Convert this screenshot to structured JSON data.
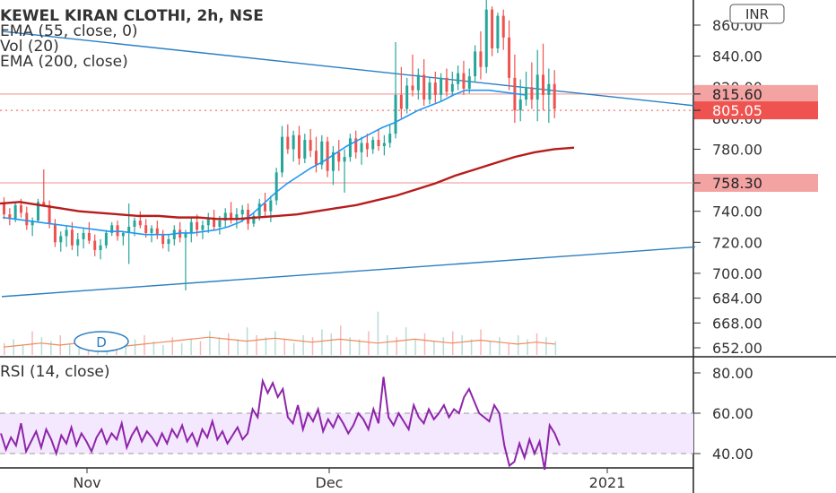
{
  "header": {
    "symbol_title": "KEWEL KIRAN CLOTHI, 2h, NSE",
    "indicators": [
      "EMA (55, close, 0)",
      "Vol (20)",
      "EMA (200, close)"
    ],
    "currency_button": "INR",
    "interval_badge": "D",
    "rsi_label": "RSI (14, close)"
  },
  "colors": {
    "up": "#26a69a",
    "down": "#ef5350",
    "ema55": "#2196f3",
    "ema200": "#b71c1c",
    "trendline": "#2a7fc2",
    "hline": "#f3a6a6",
    "rsi": "#8e24aa",
    "rsi_band": "#f3e8fd"
  },
  "chart_data": [
    {
      "type": "candlestick",
      "title": "KEWEL KIRAN CLOTHI, 2h, NSE",
      "x_labels": [
        "Nov",
        "Dec",
        "2021"
      ],
      "y_ticks": [
        860,
        840,
        820,
        800,
        780,
        760,
        740,
        720,
        700,
        684,
        668,
        652
      ],
      "y_range": [
        646,
        870
      ],
      "price_labels": [
        {
          "value": 815.6,
          "text": "815.60",
          "style": "pink"
        },
        {
          "value": 805.05,
          "text": "805.05",
          "style": "red"
        },
        {
          "value": 758.3,
          "text": "758.30",
          "style": "pink"
        }
      ],
      "horizontal_lines": [
        815.6,
        758.3
      ],
      "trendlines": [
        {
          "from": [
            0,
            856
          ],
          "to": [
            131,
            808
          ]
        },
        {
          "from": [
            0,
            685
          ],
          "to": [
            131,
            717
          ]
        }
      ],
      "candles_ohlc": [
        [
          745,
          749,
          735,
          738
        ],
        [
          738,
          742,
          731,
          735
        ],
        [
          735,
          746,
          733,
          744
        ],
        [
          744,
          748,
          736,
          739
        ],
        [
          739,
          743,
          728,
          731
        ],
        [
          731,
          736,
          724,
          734
        ],
        [
          734,
          748,
          733,
          746
        ],
        [
          746,
          767,
          743,
          744
        ],
        [
          744,
          747,
          729,
          732
        ],
        [
          732,
          735,
          717,
          720
        ],
        [
          720,
          727,
          714,
          724
        ],
        [
          724,
          731,
          717,
          728
        ],
        [
          728,
          733,
          715,
          718
        ],
        [
          718,
          726,
          711,
          722
        ],
        [
          722,
          729,
          716,
          726
        ],
        [
          726,
          733,
          719,
          721
        ],
        [
          721,
          725,
          711,
          715
        ],
        [
          715,
          722,
          709,
          718
        ],
        [
          718,
          728,
          716,
          726
        ],
        [
          726,
          733,
          724,
          731
        ],
        [
          731,
          734,
          721,
          724
        ],
        [
          724,
          727,
          718,
          726
        ],
        [
          726,
          745,
          706,
          730
        ],
        [
          730,
          736,
          724,
          734
        ],
        [
          734,
          740,
          729,
          731
        ],
        [
          731,
          735,
          723,
          726
        ],
        [
          726,
          731,
          720,
          729
        ],
        [
          729,
          734,
          722,
          725
        ],
        [
          725,
          728,
          716,
          719
        ],
        [
          719,
          725,
          714,
          722
        ],
        [
          722,
          731,
          718,
          728
        ],
        [
          728,
          733,
          720,
          723
        ],
        [
          723,
          728,
          689,
          726
        ],
        [
          726,
          736,
          720,
          733
        ],
        [
          733,
          738,
          724,
          728
        ],
        [
          728,
          734,
          722,
          731
        ],
        [
          731,
          739,
          726,
          735
        ],
        [
          735,
          741,
          728,
          730
        ],
        [
          730,
          737,
          725,
          734
        ],
        [
          734,
          742,
          730,
          739
        ],
        [
          739,
          746,
          732,
          735
        ],
        [
          735,
          742,
          729,
          738
        ],
        [
          738,
          744,
          733,
          741
        ],
        [
          741,
          745,
          728,
          732
        ],
        [
          732,
          739,
          730,
          737
        ],
        [
          737,
          748,
          734,
          745
        ],
        [
          745,
          752,
          737,
          740
        ],
        [
          740,
          750,
          733,
          747
        ],
        [
          747,
          768,
          744,
          765
        ],
        [
          765,
          795,
          762,
          788
        ],
        [
          788,
          796,
          777,
          780
        ],
        [
          780,
          792,
          772,
          789
        ],
        [
          789,
          795,
          770,
          774
        ],
        [
          774,
          790,
          771,
          786
        ],
        [
          786,
          793,
          775,
          779
        ],
        [
          779,
          788,
          765,
          770
        ],
        [
          770,
          789,
          767,
          785
        ],
        [
          785,
          788,
          762,
          766
        ],
        [
          766,
          782,
          757,
          778
        ],
        [
          778,
          786,
          766,
          772
        ],
        [
          772,
          780,
          752,
          775
        ],
        [
          775,
          790,
          772,
          787
        ],
        [
          787,
          792,
          774,
          778
        ],
        [
          778,
          788,
          770,
          784
        ],
        [
          784,
          790,
          775,
          780
        ],
        [
          780,
          788,
          777,
          786
        ],
        [
          786,
          793,
          779,
          782
        ],
        [
          782,
          789,
          776,
          784
        ],
        [
          784,
          796,
          781,
          790
        ],
        [
          790,
          849,
          787,
          815
        ],
        [
          815,
          833,
          800,
          806
        ],
        [
          806,
          826,
          803,
          821
        ],
        [
          821,
          841,
          814,
          818
        ],
        [
          818,
          832,
          812,
          828
        ],
        [
          828,
          838,
          808,
          812
        ],
        [
          812,
          826,
          809,
          823
        ],
        [
          823,
          830,
          810,
          815
        ],
        [
          815,
          829,
          811,
          826
        ],
        [
          826,
          832,
          814,
          817
        ],
        [
          817,
          830,
          814,
          822
        ],
        [
          822,
          834,
          818,
          829
        ],
        [
          829,
          837,
          815,
          819
        ],
        [
          819,
          832,
          816,
          827
        ],
        [
          827,
          847,
          823,
          843
        ],
        [
          843,
          856,
          825,
          833
        ],
        [
          833,
          878,
          829,
          870
        ],
        [
          870,
          872,
          840,
          845
        ],
        [
          845,
          868,
          842,
          866
        ],
        [
          866,
          870,
          844,
          852
        ],
        [
          852,
          863,
          818,
          826
        ],
        [
          826,
          841,
          797,
          805
        ],
        [
          805,
          825,
          798,
          812
        ],
        [
          812,
          830,
          808,
          820
        ],
        [
          820,
          836,
          806,
          812
        ],
        [
          812,
          844,
          798,
          828
        ],
        [
          828,
          848,
          805,
          815
        ],
        [
          815,
          832,
          797,
          822
        ],
        [
          822,
          831,
          800,
          806
        ]
      ],
      "candles_start_x_index": 0,
      "ema55": [
        736,
        735,
        734,
        733,
        732,
        731,
        730,
        729,
        728,
        727,
        727,
        726,
        725,
        725,
        725,
        726,
        726,
        727,
        728,
        730,
        733,
        738,
        745,
        752,
        758,
        763,
        768,
        772,
        777,
        782,
        786,
        790,
        794,
        797,
        801,
        805,
        808,
        811,
        815,
        818,
        818,
        818,
        817,
        816,
        815
      ],
      "ema200": [
        745,
        746,
        744,
        742,
        740,
        739,
        738,
        737,
        737,
        736,
        736,
        735,
        735,
        736,
        737,
        738,
        740,
        742,
        744,
        747,
        750,
        754,
        758,
        763,
        767,
        771,
        775,
        778,
        780,
        781
      ],
      "volume": [
        6,
        8,
        5,
        12,
        9,
        7,
        10,
        6,
        5,
        8,
        7,
        11,
        9,
        6,
        8,
        10,
        7,
        5,
        9,
        6,
        8,
        7,
        12,
        9,
        11,
        8,
        14,
        10,
        9,
        12,
        8,
        6,
        10,
        9,
        13,
        11,
        15,
        9,
        8,
        12,
        22,
        10,
        9,
        14,
        8,
        11,
        7,
        9,
        12,
        10,
        8,
        13,
        7,
        9,
        6,
        10,
        8,
        11,
        9,
        7
      ],
      "volume_ma": [
        4,
        4.5,
        5,
        5.5,
        6,
        5.5,
        5,
        5.5,
        6,
        6.5,
        6,
        5.5,
        5,
        4.5,
        5,
        5.5,
        6,
        6.5,
        7,
        7.5,
        8,
        8.5,
        9,
        8.5,
        8,
        7.5,
        7,
        7.5,
        8,
        8.5,
        8,
        7.5,
        7,
        6.5,
        7,
        7.5,
        8,
        7.5,
        7,
        6.5,
        6,
        6.5,
        7,
        7.5,
        8,
        7.5,
        7,
        6.5,
        6,
        6.5,
        7,
        7.5,
        7,
        6.5,
        6,
        5.5,
        6,
        6.5,
        6,
        5.5
      ]
    },
    {
      "type": "line",
      "title": "RSI (14, close)",
      "y_ticks": [
        80,
        60,
        40
      ],
      "band": [
        40,
        60
      ],
      "y_range": [
        30,
        88
      ],
      "values": [
        50,
        42,
        48,
        44,
        55,
        41,
        46,
        51,
        43,
        52,
        47,
        40,
        49,
        45,
        53,
        44,
        50,
        46,
        41,
        48,
        52,
        45,
        50,
        47,
        55,
        43,
        49,
        53,
        46,
        51,
        48,
        44,
        50,
        45,
        52,
        48,
        54,
        46,
        50,
        44,
        52,
        48,
        56,
        47,
        51,
        45,
        49,
        53,
        47,
        50,
        62,
        58,
        76,
        70,
        75,
        68,
        72,
        58,
        55,
        64,
        52,
        60,
        56,
        62,
        51,
        57,
        53,
        59,
        55,
        50,
        54,
        60,
        57,
        52,
        62,
        55,
        78,
        58,
        54,
        60,
        56,
        52,
        64,
        58,
        55,
        62,
        57,
        60,
        64,
        58,
        62,
        60,
        68,
        72,
        66,
        60,
        58,
        56,
        64,
        60,
        44,
        34,
        36,
        45,
        38,
        47,
        40,
        46,
        32,
        54,
        50,
        44
      ],
      "x_labels": [
        "Nov",
        "Dec",
        "2021"
      ]
    }
  ]
}
